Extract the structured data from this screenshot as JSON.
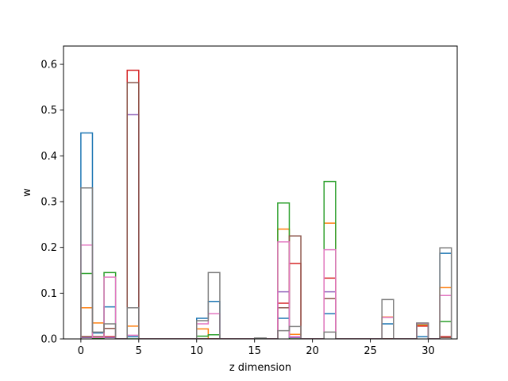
{
  "chart_data": {
    "type": "step",
    "xlabel": "z dimension",
    "ylabel": "w",
    "xlim": [
      -1.5,
      32.5
    ],
    "ylim": [
      0,
      0.64
    ],
    "xticks": [
      0,
      5,
      10,
      15,
      20,
      25,
      30
    ],
    "xtick_labels": [
      "0",
      "5",
      "10",
      "15",
      "20",
      "25",
      "30"
    ],
    "yticks": [
      0.0,
      0.1,
      0.2,
      0.3,
      0.4,
      0.5,
      0.6
    ],
    "ytick_labels": [
      "0.0",
      "0.1",
      "0.2",
      "0.3",
      "0.4",
      "0.5",
      "0.6"
    ],
    "bin_edges_start": 0,
    "bin_width": 1,
    "series": [
      {
        "color": "#1f77b4",
        "values": [
          0.45,
          0.013,
          0.07,
          0,
          0.005,
          0,
          0,
          0,
          0,
          0,
          0.045,
          0.082,
          0,
          0,
          0,
          0,
          0,
          0.045,
          0.003,
          0,
          0,
          0.055,
          0,
          0,
          0,
          0,
          0.033,
          0,
          0,
          0.005,
          0,
          0.187
        ]
      },
      {
        "color": "#ff7f0e",
        "values": [
          0.068,
          0.035,
          0.003,
          0,
          0.028,
          0,
          0,
          0,
          0,
          0,
          0.022,
          0,
          0,
          0,
          0,
          0,
          0,
          0.24,
          0.01,
          0,
          0,
          0.253,
          0,
          0,
          0,
          0,
          0.048,
          0,
          0,
          0.03,
          0,
          0.112
        ]
      },
      {
        "color": "#2ca02c",
        "values": [
          0.143,
          0.002,
          0.145,
          0,
          0,
          0,
          0,
          0,
          0,
          0,
          0.006,
          0.009,
          0,
          0,
          0,
          0,
          0,
          0.297,
          0,
          0,
          0,
          0.344,
          0,
          0,
          0,
          0,
          0,
          0,
          0,
          0.033,
          0,
          0.038
        ]
      },
      {
        "color": "#d62728",
        "values": [
          0.005,
          0.005,
          0.005,
          0,
          0.587,
          0,
          0,
          0,
          0,
          0,
          0,
          0,
          0,
          0,
          0,
          0,
          0,
          0.078,
          0.165,
          0,
          0,
          0.133,
          0,
          0,
          0,
          0,
          0,
          0,
          0,
          0.028,
          0,
          0.005
        ]
      },
      {
        "color": "#9467bd",
        "values": [
          0.003,
          0.003,
          0.003,
          0,
          0.49,
          0,
          0,
          0,
          0,
          0,
          0,
          0,
          0,
          0,
          0,
          0,
          0,
          0.103,
          0.003,
          0,
          0,
          0.103,
          0,
          0,
          0,
          0,
          0,
          0,
          0,
          0.034,
          0,
          0.003
        ]
      },
      {
        "color": "#8c564b",
        "values": [
          0.005,
          0.005,
          0.023,
          0,
          0.56,
          0,
          0,
          0,
          0,
          0,
          0,
          0,
          0,
          0,
          0,
          0,
          0,
          0.068,
          0.225,
          0,
          0,
          0.088,
          0,
          0,
          0,
          0,
          0,
          0,
          0,
          0.034,
          0,
          0.003
        ]
      },
      {
        "color": "#e377c2",
        "values": [
          0.205,
          0.003,
          0.135,
          0,
          0.008,
          0,
          0,
          0,
          0,
          0,
          0.033,
          0.055,
          0,
          0,
          0,
          0,
          0,
          0.212,
          0.005,
          0,
          0,
          0.195,
          0,
          0,
          0,
          0,
          0.047,
          0,
          0,
          0.034,
          0,
          0.095
        ]
      },
      {
        "color": "#7f7f7f",
        "values": [
          0.33,
          0.015,
          0.033,
          0,
          0.068,
          0,
          0,
          0,
          0,
          0,
          0.04,
          0.145,
          0,
          0,
          0,
          0.002,
          0,
          0.018,
          0.027,
          0,
          0,
          0.015,
          0,
          0,
          0,
          0,
          0.086,
          0,
          0,
          0.035,
          0,
          0.199
        ]
      }
    ]
  }
}
